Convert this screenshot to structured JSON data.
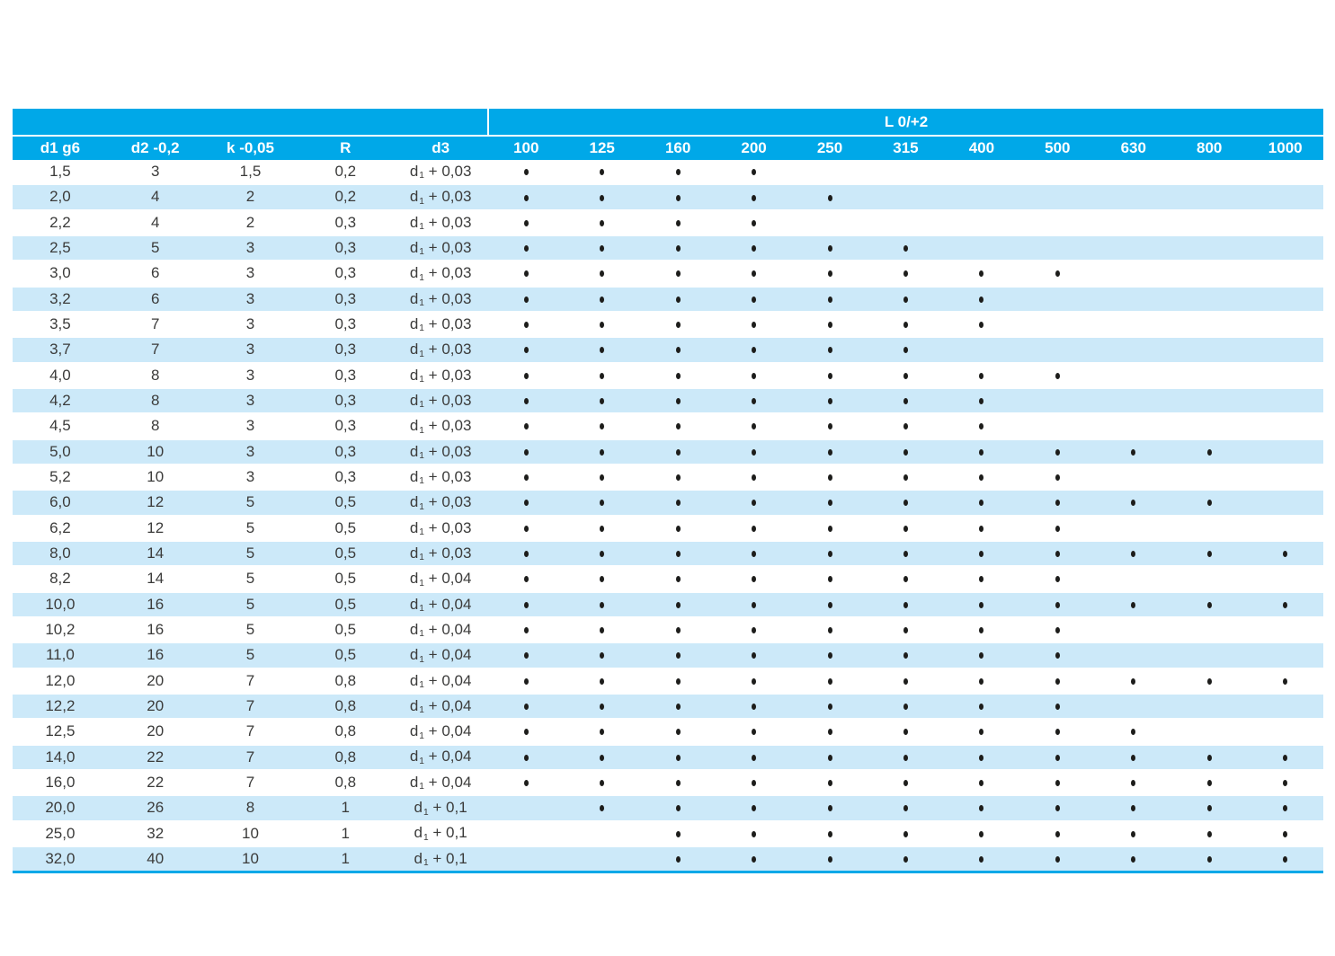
{
  "colors": {
    "header_cyan": "#00A8E8",
    "row_stripe": "#CCE9F9",
    "header_text": "#FFFFFF",
    "text": "#3B3B3A",
    "dot": "#1D1D1B"
  },
  "table": {
    "group_header": "L 0/+2",
    "dim_columns": [
      "d1 g6",
      "d2 -0,2",
      "k -0,05",
      "R",
      "d3"
    ],
    "length_columns": [
      "100",
      "125",
      "160",
      "200",
      "250",
      "315",
      "400",
      "500",
      "630",
      "800",
      "1000"
    ],
    "d3_symbol": {
      "base": "d",
      "sub": "1"
    },
    "rows": [
      {
        "d1": "1,5",
        "d2": "3",
        "k": "1,5",
        "r": "0,2",
        "d3": " + 0,03",
        "lengths": [
          "100",
          "125",
          "160",
          "200"
        ]
      },
      {
        "d1": "2,0",
        "d2": "4",
        "k": "2",
        "r": "0,2",
        "d3": " + 0,03",
        "lengths": [
          "100",
          "125",
          "160",
          "200",
          "250"
        ]
      },
      {
        "d1": "2,2",
        "d2": "4",
        "k": "2",
        "r": "0,3",
        "d3": " + 0,03",
        "lengths": [
          "100",
          "125",
          "160",
          "200"
        ]
      },
      {
        "d1": "2,5",
        "d2": "5",
        "k": "3",
        "r": "0,3",
        "d3": " + 0,03",
        "lengths": [
          "100",
          "125",
          "160",
          "200",
          "250",
          "315"
        ]
      },
      {
        "d1": "3,0",
        "d2": "6",
        "k": "3",
        "r": "0,3",
        "d3": " + 0,03",
        "lengths": [
          "100",
          "125",
          "160",
          "200",
          "250",
          "315",
          "400",
          "500"
        ]
      },
      {
        "d1": "3,2",
        "d2": "6",
        "k": "3",
        "r": "0,3",
        "d3": " + 0,03",
        "lengths": [
          "100",
          "125",
          "160",
          "200",
          "250",
          "315",
          "400"
        ]
      },
      {
        "d1": "3,5",
        "d2": "7",
        "k": "3",
        "r": "0,3",
        "d3": " + 0,03",
        "lengths": [
          "100",
          "125",
          "160",
          "200",
          "250",
          "315",
          "400"
        ]
      },
      {
        "d1": "3,7",
        "d2": "7",
        "k": "3",
        "r": "0,3",
        "d3": " + 0,03",
        "lengths": [
          "100",
          "125",
          "160",
          "200",
          "250",
          "315"
        ]
      },
      {
        "d1": "4,0",
        "d2": "8",
        "k": "3",
        "r": "0,3",
        "d3": " + 0,03",
        "lengths": [
          "100",
          "125",
          "160",
          "200",
          "250",
          "315",
          "400",
          "500"
        ]
      },
      {
        "d1": "4,2",
        "d2": "8",
        "k": "3",
        "r": "0,3",
        "d3": " + 0,03",
        "lengths": [
          "100",
          "125",
          "160",
          "200",
          "250",
          "315",
          "400"
        ]
      },
      {
        "d1": "4,5",
        "d2": "8",
        "k": "3",
        "r": "0,3",
        "d3": " + 0,03",
        "lengths": [
          "100",
          "125",
          "160",
          "200",
          "250",
          "315",
          "400"
        ]
      },
      {
        "d1": "5,0",
        "d2": "10",
        "k": "3",
        "r": "0,3",
        "d3": " + 0,03",
        "lengths": [
          "100",
          "125",
          "160",
          "200",
          "250",
          "315",
          "400",
          "500",
          "630",
          "800"
        ]
      },
      {
        "d1": "5,2",
        "d2": "10",
        "k": "3",
        "r": "0,3",
        "d3": " + 0,03",
        "lengths": [
          "100",
          "125",
          "160",
          "200",
          "250",
          "315",
          "400",
          "500"
        ]
      },
      {
        "d1": "6,0",
        "d2": "12",
        "k": "5",
        "r": "0,5",
        "d3": " + 0,03",
        "lengths": [
          "100",
          "125",
          "160",
          "200",
          "250",
          "315",
          "400",
          "500",
          "630",
          "800"
        ]
      },
      {
        "d1": "6,2",
        "d2": "12",
        "k": "5",
        "r": "0,5",
        "d3": " + 0,03",
        "lengths": [
          "100",
          "125",
          "160",
          "200",
          "250",
          "315",
          "400",
          "500"
        ]
      },
      {
        "d1": "8,0",
        "d2": "14",
        "k": "5",
        "r": "0,5",
        "d3": " + 0,03",
        "lengths": [
          "100",
          "125",
          "160",
          "200",
          "250",
          "315",
          "400",
          "500",
          "630",
          "800",
          "1000"
        ]
      },
      {
        "d1": "8,2",
        "d2": "14",
        "k": "5",
        "r": "0,5",
        "d3": " + 0,04",
        "lengths": [
          "100",
          "125",
          "160",
          "200",
          "250",
          "315",
          "400",
          "500"
        ]
      },
      {
        "d1": "10,0",
        "d2": "16",
        "k": "5",
        "r": "0,5",
        "d3": " + 0,04",
        "lengths": [
          "100",
          "125",
          "160",
          "200",
          "250",
          "315",
          "400",
          "500",
          "630",
          "800",
          "1000"
        ]
      },
      {
        "d1": "10,2",
        "d2": "16",
        "k": "5",
        "r": "0,5",
        "d3": " + 0,04",
        "lengths": [
          "100",
          "125",
          "160",
          "200",
          "250",
          "315",
          "400",
          "500"
        ]
      },
      {
        "d1": "11,0",
        "d2": "16",
        "k": "5",
        "r": "0,5",
        "d3": " + 0,04",
        "lengths": [
          "100",
          "125",
          "160",
          "200",
          "250",
          "315",
          "400",
          "500"
        ]
      },
      {
        "d1": "12,0",
        "d2": "20",
        "k": "7",
        "r": "0,8",
        "d3": " + 0,04",
        "lengths": [
          "100",
          "125",
          "160",
          "200",
          "250",
          "315",
          "400",
          "500",
          "630",
          "800",
          "1000"
        ]
      },
      {
        "d1": "12,2",
        "d2": "20",
        "k": "7",
        "r": "0,8",
        "d3": " + 0,04",
        "lengths": [
          "100",
          "125",
          "160",
          "200",
          "250",
          "315",
          "400",
          "500"
        ]
      },
      {
        "d1": "12,5",
        "d2": "20",
        "k": "7",
        "r": "0,8",
        "d3": " + 0,04",
        "lengths": [
          "100",
          "125",
          "160",
          "200",
          "250",
          "315",
          "400",
          "500",
          "630"
        ]
      },
      {
        "d1": "14,0",
        "d2": "22",
        "k": "7",
        "r": "0,8",
        "d3": " + 0,04",
        "lengths": [
          "100",
          "125",
          "160",
          "200",
          "250",
          "315",
          "400",
          "500",
          "630",
          "800",
          "1000"
        ]
      },
      {
        "d1": "16,0",
        "d2": "22",
        "k": "7",
        "r": "0,8",
        "d3": " + 0,04",
        "lengths": [
          "100",
          "125",
          "160",
          "200",
          "250",
          "315",
          "400",
          "500",
          "630",
          "800",
          "1000"
        ]
      },
      {
        "d1": "20,0",
        "d2": "26",
        "k": "8",
        "r": "1",
        "d3": " + 0,1",
        "lengths": [
          "125",
          "160",
          "200",
          "250",
          "315",
          "400",
          "500",
          "630",
          "800",
          "1000"
        ]
      },
      {
        "d1": "25,0",
        "d2": "32",
        "k": "10",
        "r": "1",
        "d3": " + 0,1",
        "lengths": [
          "160",
          "200",
          "250",
          "315",
          "400",
          "500",
          "630",
          "800",
          "1000"
        ]
      },
      {
        "d1": "32,0",
        "d2": "40",
        "k": "10",
        "r": "1",
        "d3": " + 0,1",
        "lengths": [
          "160",
          "200",
          "250",
          "315",
          "400",
          "500",
          "630",
          "800",
          "1000"
        ]
      }
    ]
  }
}
